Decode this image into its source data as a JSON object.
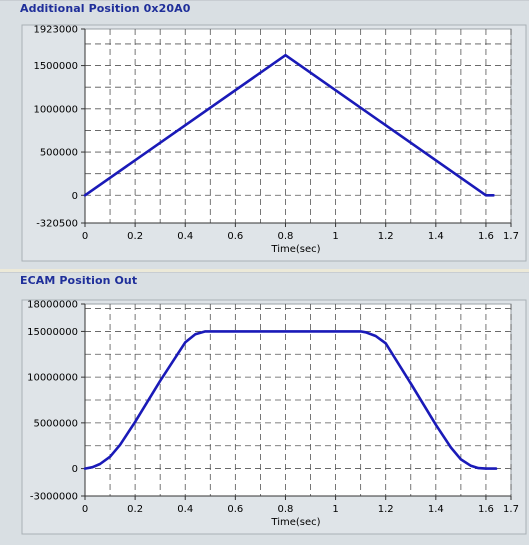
{
  "colors": {
    "line": "#1a1ab8",
    "grid": "#555555",
    "plot_background": "#ffffff",
    "panel_background": "#d9dfe3",
    "title": "#1f2f9a"
  },
  "chart_data": [
    {
      "type": "line",
      "title": "Additional Position 0x20A0",
      "xlabel": "Time(sec)",
      "ylabel": "",
      "xlim": [
        0,
        1.7
      ],
      "ylim": [
        -320500,
        1923000
      ],
      "x_ticks": [
        0,
        0.2,
        0.4,
        0.6,
        0.8,
        1,
        1.2,
        1.4,
        1.6,
        1.7
      ],
      "x_tick_labels": [
        "0",
        "0.2",
        "0.4",
        "0.6",
        "0.8",
        "1",
        "1.2",
        "1.4",
        "1.6",
        "1.7"
      ],
      "y_ticks": [
        -320500,
        0,
        500000,
        1000000,
        1500000,
        1923000
      ],
      "y_tick_labels": [
        "-320500",
        "0",
        "500000",
        "1000000",
        "1500000",
        "1923000"
      ],
      "x_grid": [
        0.1,
        0.2,
        0.3,
        0.4,
        0.5,
        0.6,
        0.7,
        0.8,
        0.9,
        1.0,
        1.1,
        1.2,
        1.3,
        1.4,
        1.5,
        1.6,
        1.7
      ],
      "y_grid": [
        0,
        250000,
        500000,
        750000,
        1000000,
        1250000,
        1500000,
        1750000
      ],
      "grid": true,
      "series": [
        {
          "x": [
            0,
            0.8,
            1.6,
            1.63
          ],
          "y": [
            0,
            1620000,
            0,
            0
          ]
        }
      ]
    },
    {
      "type": "line",
      "title": "ECAM Position Out",
      "xlabel": "Time(sec)",
      "ylabel": "",
      "xlim": [
        0,
        1.7
      ],
      "ylim": [
        -3000000,
        18000000
      ],
      "x_ticks": [
        0,
        0.2,
        0.4,
        0.6,
        0.8,
        1,
        1.2,
        1.4,
        1.6,
        1.7
      ],
      "x_tick_labels": [
        "0",
        "0.2",
        "0.4",
        "0.6",
        "0.8",
        "1",
        "1.2",
        "1.4",
        "1.6",
        "1.7"
      ],
      "y_ticks": [
        -3000000,
        0,
        5000000,
        10000000,
        15000000,
        18000000
      ],
      "y_tick_labels": [
        "-3000000",
        "0",
        "5000000",
        "10000000",
        "15000000",
        "18000000"
      ],
      "x_grid": [
        0.1,
        0.2,
        0.3,
        0.4,
        0.5,
        0.6,
        0.7,
        0.8,
        0.9,
        1.0,
        1.1,
        1.2,
        1.3,
        1.4,
        1.5,
        1.6,
        1.7
      ],
      "y_grid": [
        0,
        2500000,
        5000000,
        7500000,
        10000000,
        12500000,
        15000000,
        17500000
      ],
      "grid": true,
      "series": [
        {
          "x": [
            0,
            0.03,
            0.06,
            0.1,
            0.14,
            0.2,
            0.3,
            0.4,
            0.44,
            0.48,
            0.5,
            0.8,
            1.1,
            1.12,
            1.16,
            1.2,
            1.3,
            1.4,
            1.46,
            1.5,
            1.54,
            1.57,
            1.6,
            1.64
          ],
          "y": [
            0,
            150000,
            500000,
            1300000,
            2600000,
            5100000,
            9600000,
            13800000,
            14700000,
            15000000,
            15000000,
            15000000,
            15000000,
            14900000,
            14500000,
            13700000,
            9300000,
            4800000,
            2300000,
            1000000,
            300000,
            50000,
            0,
            0
          ]
        }
      ]
    }
  ]
}
